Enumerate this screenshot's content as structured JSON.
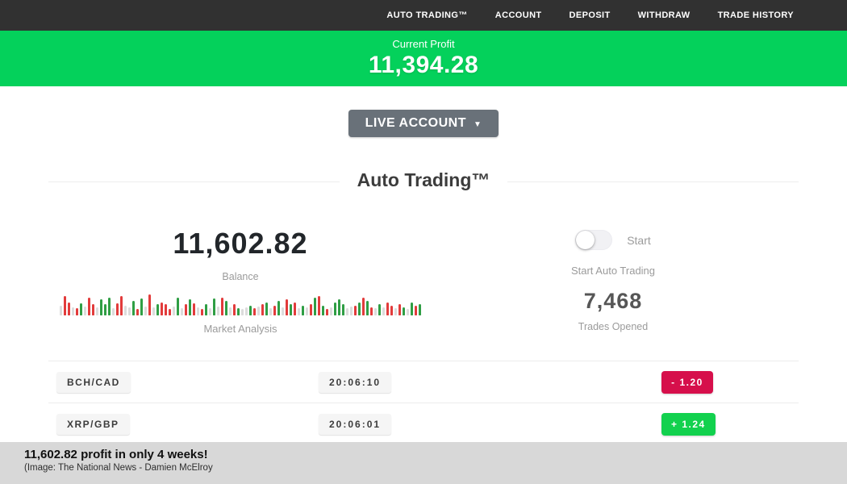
{
  "colors": {
    "nav_bg": "#313131",
    "banner_green": "#04d15b",
    "button_gray": "#697179",
    "badge_red": "#d60f4b",
    "badge_green": "#12d14e",
    "bar_red": "#e23b3b",
    "bar_green": "#2f9e44",
    "caption_bg": "#d8d8d8"
  },
  "nav": {
    "items": [
      {
        "label": "AUTO TRADING™"
      },
      {
        "label": "ACCOUNT"
      },
      {
        "label": "DEPOSIT"
      },
      {
        "label": "WITHDRAW"
      },
      {
        "label": "TRADE HISTORY"
      }
    ]
  },
  "profit_banner": {
    "label": "Current Profit",
    "value": "11,394.28"
  },
  "account_selector": {
    "label": "LIVE ACCOUNT",
    "caret": "▼"
  },
  "section": {
    "title": "Auto Trading™"
  },
  "stats": {
    "balance": {
      "value": "11,602.82",
      "label": "Balance"
    },
    "auto_trading": {
      "toggle_label": "Start",
      "state": "off",
      "caption": "Start Auto Trading"
    },
    "market": {
      "label": "Market Analysis",
      "bars": [
        "e12",
        "r24",
        "r16",
        "e10",
        "r9",
        "g15",
        "e11",
        "r22",
        "r14",
        "e10",
        "g20",
        "g14",
        "g22",
        "e9",
        "r15",
        "r24",
        "e12",
        "e10",
        "g18",
        "r8",
        "g21",
        "e11",
        "r26",
        "e10",
        "g14",
        "r16",
        "r14",
        "r8",
        "e11",
        "g22",
        "e9",
        "r14",
        "g20",
        "r15",
        "e10",
        "r8",
        "g14",
        "e9",
        "g21",
        "e11",
        "r22",
        "g18",
        "e10",
        "r14",
        "g9",
        "e8",
        "e10",
        "g12",
        "r9",
        "e11",
        "r14",
        "g16",
        "e9",
        "r12",
        "g18",
        "e10",
        "r20",
        "g14",
        "r16",
        "e9",
        "g12",
        "e10",
        "r14",
        "g22",
        "r24",
        "g12",
        "r8",
        "e10",
        "g16",
        "g20",
        "g14",
        "e9",
        "e11",
        "r12",
        "g16",
        "r22",
        "g18",
        "r10",
        "e9",
        "g14",
        "e10",
        "r16",
        "r12",
        "e9",
        "r14",
        "g10",
        "e8",
        "g16",
        "r12",
        "g14"
      ]
    },
    "trades": {
      "value": "7,468",
      "label": "Trades Opened"
    }
  },
  "trade_rows": [
    {
      "pair": "BCH/CAD",
      "time": "20:06:10",
      "result": "-  1.20",
      "direction": "loss"
    },
    {
      "pair": "XRP/GBP",
      "time": "20:06:01",
      "result": "+  1.24",
      "direction": "win"
    }
  ],
  "caption": {
    "headline": "11,602.82 profit in only 4 weeks!",
    "credit": "(Image:  The National News - Damien McElroy"
  }
}
